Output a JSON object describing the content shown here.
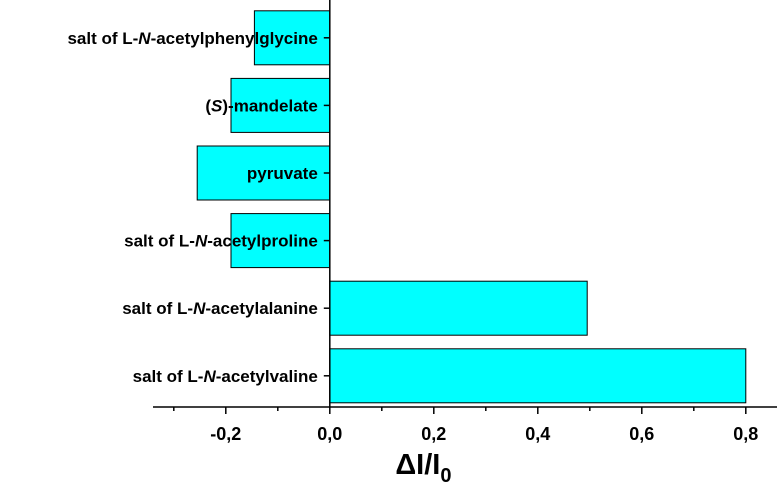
{
  "chart_data": {
    "type": "bar",
    "orientation": "horizontal",
    "categories": [
      {
        "pre": "salt of L-",
        "italic": "N",
        "post": "-acetylphenylglycine"
      },
      {
        "pre": "(",
        "italic": "S",
        "post": ")-mandelate"
      },
      {
        "pre": "pyruvate",
        "italic": "",
        "post": ""
      },
      {
        "pre": "salt of L-",
        "italic": "N",
        "post": "-acetylproline"
      },
      {
        "pre": "salt of L-",
        "italic": "N",
        "post": "-acetylalanine"
      },
      {
        "pre": "salt of L-",
        "italic": "N",
        "post": "-acetylvaline"
      }
    ],
    "values": [
      -0.145,
      -0.19,
      -0.255,
      -0.19,
      0.495,
      0.8
    ],
    "xlabel": {
      "main": "ΔI/I",
      "sub": "0"
    },
    "xlim": [
      -0.34,
      0.86
    ],
    "xticks": [
      "-0,2",
      "0,0",
      "0,2",
      "0,4",
      "0,6",
      "0,8"
    ],
    "xtick_values": [
      -0.2,
      0.0,
      0.2,
      0.4,
      0.6,
      0.8
    ],
    "grid": false,
    "bar_color": "#00FFFF",
    "bar_edge_color": "#000000"
  }
}
